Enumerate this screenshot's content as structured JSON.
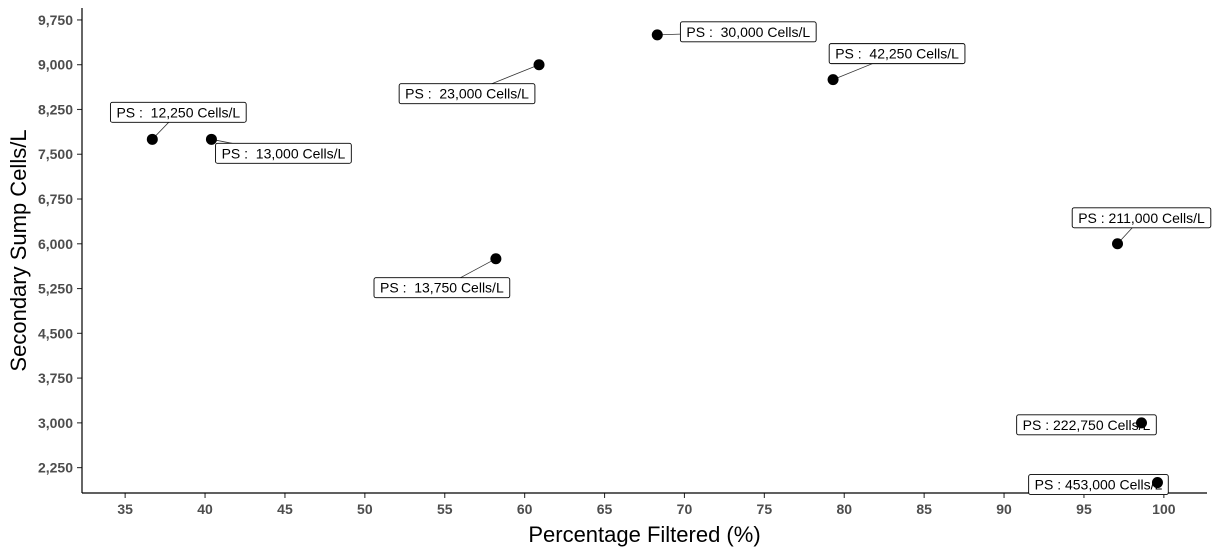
{
  "chart_data": {
    "type": "scatter",
    "title": "",
    "xlabel": "Percentage Filtered (%)",
    "ylabel": "Secondary Sump Cells/L",
    "xlim": [
      32.3,
      102.7
    ],
    "ylim": [
      1825,
      9950
    ],
    "x_ticks": [
      35,
      40,
      45,
      50,
      55,
      60,
      65,
      70,
      75,
      80,
      85,
      90,
      95,
      100
    ],
    "x_tick_labels": [
      "35",
      "40",
      "45",
      "50",
      "55",
      "60",
      "65",
      "70",
      "75",
      "80",
      "85",
      "90",
      "95",
      "100"
    ],
    "y_ticks": [
      2250,
      3000,
      3750,
      4500,
      5250,
      6000,
      6750,
      7500,
      8250,
      9000,
      9750
    ],
    "y_tick_labels": [
      "2,250",
      "3,000",
      "3,750",
      "4,500",
      "5,250",
      "6,000",
      "6,750",
      "7,500",
      "8,250",
      "9,000",
      "9,750"
    ],
    "grid": false,
    "point_color": "#000000",
    "points": [
      {
        "x": 36.7,
        "y": 7750,
        "label": "PS :  12,250 Cells/L"
      },
      {
        "x": 40.4,
        "y": 7750,
        "label": "PS :  13,000 Cells/L"
      },
      {
        "x": 58.2,
        "y": 5750,
        "label": "PS :  13,750 Cells/L"
      },
      {
        "x": 60.9,
        "y": 9000,
        "label": "PS :  23,000 Cells/L"
      },
      {
        "x": 68.3,
        "y": 9500,
        "label": "PS :  30,000 Cells/L"
      },
      {
        "x": 79.3,
        "y": 8750,
        "label": "PS :  42,250 Cells/L"
      },
      {
        "x": 97.1,
        "y": 6000,
        "label": "PS : 211,000 Cells/L"
      },
      {
        "x": 98.6,
        "y": 3000,
        "label": "PS : 222,750 Cells/L"
      },
      {
        "x": 99.6,
        "y": 2000,
        "label": "PS : 453,000 Cells/L"
      }
    ]
  }
}
